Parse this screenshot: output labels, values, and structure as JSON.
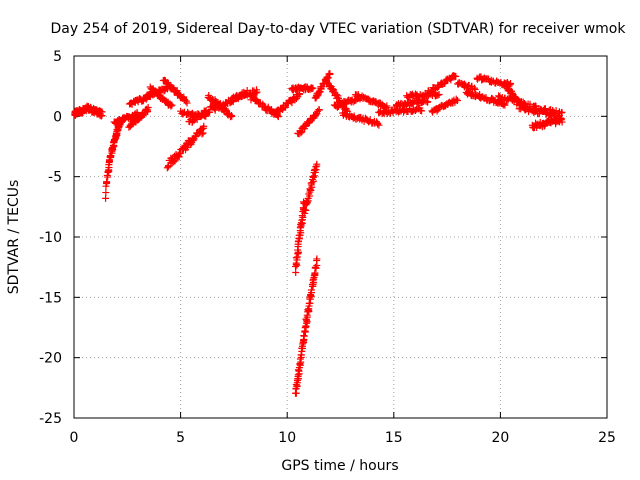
{
  "chart_data": {
    "type": "scatter",
    "title": "Day 254 of 2019, Sidereal Day-to-day VTEC variation (SDTVAR) for receiver wmok",
    "xlabel": "GPS time / hours",
    "ylabel": "SDTVAR / TECUs",
    "xlim": [
      0,
      25
    ],
    "ylim": [
      -25,
      5
    ],
    "xticks": [
      0,
      5,
      10,
      15,
      20,
      25
    ],
    "yticks": [
      5,
      0,
      -5,
      -10,
      -15,
      -20,
      -25
    ],
    "grid": true,
    "marker": "+",
    "color": "#ff0000",
    "series": [
      {
        "name": "SDTVAR",
        "segments": [
          {
            "x0": 0.0,
            "x1": 0.6,
            "y0": 0.2,
            "y1": 0.6,
            "n": 50,
            "jitter": 0.4
          },
          {
            "x0": 0.6,
            "x1": 1.3,
            "y0": 0.7,
            "y1": 0.2,
            "n": 50,
            "jitter": 0.4
          },
          {
            "x0": 1.5,
            "x1": 2.2,
            "y0": -7.0,
            "y1": -0.4,
            "n": 70,
            "jitter": 0.4,
            "curve": "sqrt"
          },
          {
            "x0": 1.9,
            "x1": 3.0,
            "y0": -0.5,
            "y1": 0.2,
            "n": 40,
            "jitter": 0.3
          },
          {
            "x0": 2.6,
            "x1": 3.5,
            "y0": -0.8,
            "y1": 0.6,
            "n": 35,
            "jitter": 0.3
          },
          {
            "x0": 2.6,
            "x1": 3.6,
            "y0": 1.0,
            "y1": 1.7,
            "n": 35,
            "jitter": 0.3
          },
          {
            "x0": 3.4,
            "x1": 4.4,
            "y0": 1.6,
            "y1": 2.4,
            "n": 35,
            "jitter": 0.3
          },
          {
            "x0": 3.6,
            "x1": 4.6,
            "y0": 2.3,
            "y1": 0.8,
            "n": 35,
            "jitter": 0.3
          },
          {
            "x0": 4.2,
            "x1": 5.3,
            "y0": 3.0,
            "y1": 1.2,
            "n": 35,
            "jitter": 0.3
          },
          {
            "x0": 4.4,
            "x1": 6.1,
            "y0": -4.0,
            "y1": -1.0,
            "n": 60,
            "jitter": 0.6
          },
          {
            "x0": 5.0,
            "x1": 6.2,
            "y0": 0.3,
            "y1": 0.0,
            "n": 30,
            "jitter": 0.3
          },
          {
            "x0": 5.4,
            "x1": 6.6,
            "y0": -0.5,
            "y1": 0.8,
            "n": 30,
            "jitter": 0.4
          },
          {
            "x0": 6.3,
            "x1": 7.4,
            "y0": 1.7,
            "y1": 0.0,
            "n": 35,
            "jitter": 0.3
          },
          {
            "x0": 6.6,
            "x1": 8.1,
            "y0": 0.6,
            "y1": 2.0,
            "n": 40,
            "jitter": 0.4
          },
          {
            "x0": 7.4,
            "x1": 8.6,
            "y0": 1.5,
            "y1": 2.1,
            "n": 30,
            "jitter": 0.3
          },
          {
            "x0": 8.3,
            "x1": 9.6,
            "y0": 1.5,
            "y1": 0.0,
            "n": 35,
            "jitter": 0.4
          },
          {
            "x0": 9.3,
            "x1": 10.6,
            "y0": 0.2,
            "y1": 1.8,
            "n": 35,
            "jitter": 0.4
          },
          {
            "x0": 10.2,
            "x1": 11.2,
            "y0": 2.2,
            "y1": 2.4,
            "n": 30,
            "jitter": 0.3
          },
          {
            "x0": 10.5,
            "x1": 11.5,
            "y0": -1.5,
            "y1": 0.5,
            "n": 30,
            "jitter": 0.3
          },
          {
            "x0": 10.4,
            "x1": 10.8,
            "y0": -12.7,
            "y1": -7.0,
            "n": 40,
            "jitter": 0.6
          },
          {
            "x0": 10.8,
            "x1": 11.4,
            "y0": -8.0,
            "y1": -4.0,
            "n": 35,
            "jitter": 0.5
          },
          {
            "x0": 10.4,
            "x1": 10.9,
            "y0": -23.0,
            "y1": -17.0,
            "n": 45,
            "jitter": 0.5
          },
          {
            "x0": 10.9,
            "x1": 11.4,
            "y0": -17.0,
            "y1": -12.0,
            "n": 40,
            "jitter": 0.5
          },
          {
            "x0": 11.3,
            "x1": 12.0,
            "y0": 1.5,
            "y1": 3.5,
            "n": 30,
            "jitter": 0.3
          },
          {
            "x0": 11.8,
            "x1": 12.8,
            "y0": 3.0,
            "y1": 0.4,
            "n": 35,
            "jitter": 0.3
          },
          {
            "x0": 12.2,
            "x1": 13.4,
            "y0": 0.8,
            "y1": 1.5,
            "n": 30,
            "jitter": 0.3
          },
          {
            "x0": 12.6,
            "x1": 14.3,
            "y0": 0.2,
            "y1": -0.6,
            "n": 40,
            "jitter": 0.3
          },
          {
            "x0": 13.2,
            "x1": 14.7,
            "y0": 1.8,
            "y1": 0.7,
            "n": 40,
            "jitter": 0.3
          },
          {
            "x0": 14.3,
            "x1": 16.3,
            "y0": 0.3,
            "y1": 0.6,
            "n": 45,
            "jitter": 0.3
          },
          {
            "x0": 15.1,
            "x1": 16.6,
            "y0": 0.9,
            "y1": 1.3,
            "n": 35,
            "jitter": 0.3
          },
          {
            "x0": 15.6,
            "x1": 17.1,
            "y0": 1.7,
            "y1": 1.8,
            "n": 35,
            "jitter": 0.3
          },
          {
            "x0": 16.6,
            "x1": 17.9,
            "y0": 2.0,
            "y1": 3.4,
            "n": 35,
            "jitter": 0.3
          },
          {
            "x0": 16.8,
            "x1": 18.0,
            "y0": 0.4,
            "y1": 1.4,
            "n": 30,
            "jitter": 0.3
          },
          {
            "x0": 18.0,
            "x1": 18.8,
            "y0": 2.7,
            "y1": 2.3,
            "n": 20,
            "jitter": 0.3
          },
          {
            "x0": 18.4,
            "x1": 20.2,
            "y0": 2.0,
            "y1": 1.0,
            "n": 45,
            "jitter": 0.3
          },
          {
            "x0": 18.9,
            "x1": 20.5,
            "y0": 3.2,
            "y1": 2.6,
            "n": 40,
            "jitter": 0.3
          },
          {
            "x0": 20.2,
            "x1": 21.2,
            "y0": 2.6,
            "y1": 0.6,
            "n": 30,
            "jitter": 0.3
          },
          {
            "x0": 20.8,
            "x1": 22.9,
            "y0": 1.0,
            "y1": 0.0,
            "n": 70,
            "jitter": 0.7
          },
          {
            "x0": 21.5,
            "x1": 22.9,
            "y0": -0.8,
            "y1": -0.3,
            "n": 45,
            "jitter": 0.5
          },
          {
            "x0": 19.9,
            "x1": 21.0,
            "y0": 1.6,
            "y1": 1.2,
            "n": 25,
            "jitter": 0.3
          }
        ]
      }
    ]
  }
}
